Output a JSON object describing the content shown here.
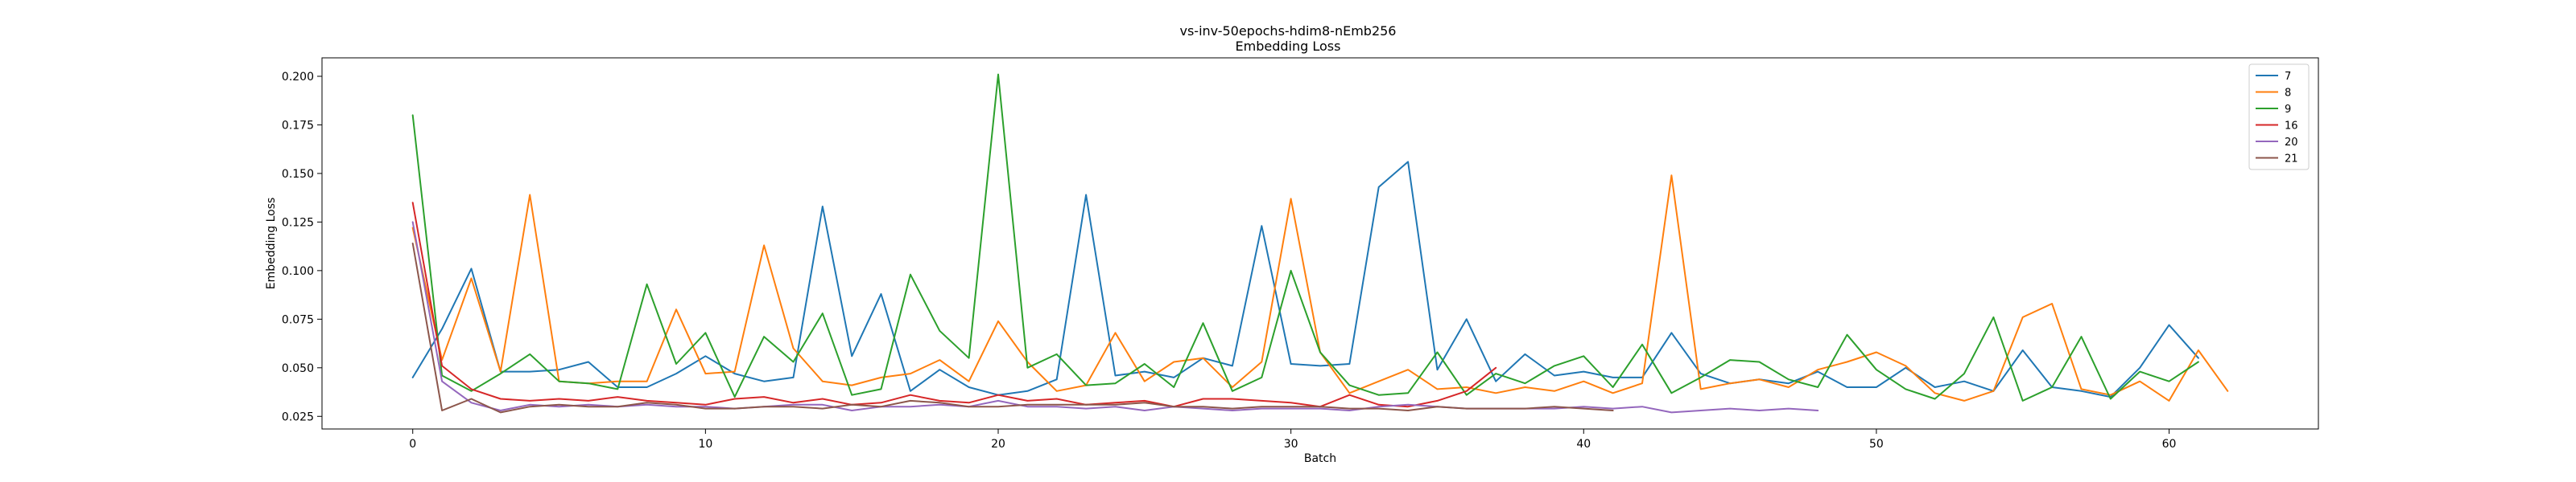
{
  "chart_data": {
    "type": "line",
    "title": "vs-inv-50epochs-hdim8-nEmb256",
    "subtitle": "Embedding Loss",
    "xlabel": "Batch",
    "ylabel": "Embedding Loss",
    "xlim": [
      -3.1,
      65.1
    ],
    "ylim": [
      0.0185,
      0.2095
    ],
    "xticks": [
      0,
      10,
      20,
      30,
      40,
      50,
      60
    ],
    "yticks": [
      0.025,
      0.05,
      0.075,
      0.1,
      0.125,
      0.15,
      0.175,
      0.2
    ],
    "ytick_labels": [
      "0.025",
      "0.050",
      "0.075",
      "0.100",
      "0.125",
      "0.150",
      "0.175",
      "0.200"
    ],
    "grid": false,
    "legend_position": "top-right",
    "series": [
      {
        "name": "7",
        "color": "#1f77b4",
        "values": [
          0.045,
          0.07,
          0.101,
          0.048,
          0.048,
          0.049,
          0.053,
          0.04,
          0.04,
          0.047,
          0.056,
          0.047,
          0.043,
          0.045,
          0.133,
          0.056,
          0.088,
          0.038,
          0.049,
          0.04,
          0.036,
          0.038,
          0.044,
          0.139,
          0.046,
          0.048,
          0.045,
          0.055,
          0.051,
          0.123,
          0.052,
          0.051,
          0.052,
          0.143,
          0.156,
          0.049,
          0.075,
          0.043,
          0.057,
          0.046,
          0.048,
          0.045,
          0.045,
          0.068,
          0.047,
          0.042,
          0.044,
          0.042,
          0.048,
          0.04,
          0.04,
          0.05,
          0.04,
          0.043,
          0.038,
          0.059,
          0.04,
          0.038,
          0.035,
          0.05,
          0.072,
          0.055
        ]
      },
      {
        "name": "8",
        "color": "#ff7f0e",
        "values": [
          0.122,
          0.054,
          0.096,
          0.048,
          0.139,
          0.043,
          0.042,
          0.043,
          0.043,
          0.08,
          0.047,
          0.048,
          0.113,
          0.06,
          0.043,
          0.041,
          0.045,
          0.047,
          0.054,
          0.043,
          0.074,
          0.053,
          0.038,
          0.041,
          0.068,
          0.043,
          0.053,
          0.055,
          0.04,
          0.053,
          0.137,
          0.058,
          0.037,
          0.043,
          0.049,
          0.039,
          0.04,
          0.037,
          0.04,
          0.038,
          0.043,
          0.037,
          0.042,
          0.149,
          0.039,
          0.042,
          0.044,
          0.04,
          0.049,
          0.053,
          0.058,
          0.051,
          0.037,
          0.033,
          0.038,
          0.076,
          0.083,
          0.039,
          0.036,
          0.043,
          0.033,
          0.059,
          0.038
        ]
      },
      {
        "name": "9",
        "color": "#2ca02c",
        "values": [
          0.18,
          0.046,
          0.038,
          0.047,
          0.057,
          0.043,
          0.042,
          0.039,
          0.093,
          0.052,
          0.068,
          0.035,
          0.066,
          0.053,
          0.078,
          0.036,
          0.039,
          0.098,
          0.069,
          0.055,
          0.201,
          0.05,
          0.057,
          0.041,
          0.042,
          0.052,
          0.04,
          0.073,
          0.038,
          0.045,
          0.1,
          0.058,
          0.041,
          0.036,
          0.037,
          0.058,
          0.036,
          0.047,
          0.042,
          0.051,
          0.056,
          0.04,
          0.062,
          0.037,
          0.045,
          0.054,
          0.053,
          0.044,
          0.04,
          0.067,
          0.049,
          0.039,
          0.034,
          0.047,
          0.076,
          0.033,
          0.04,
          0.066,
          0.034,
          0.048,
          0.043,
          0.053
        ]
      },
      {
        "name": "16",
        "color": "#d62728",
        "values": [
          0.135,
          0.051,
          0.039,
          0.034,
          0.033,
          0.034,
          0.033,
          0.035,
          0.033,
          0.032,
          0.031,
          0.034,
          0.035,
          0.032,
          0.034,
          0.031,
          0.032,
          0.036,
          0.033,
          0.032,
          0.036,
          0.033,
          0.034,
          0.031,
          0.032,
          0.033,
          0.03,
          0.034,
          0.034,
          0.033,
          0.032,
          0.03,
          0.036,
          0.031,
          0.03,
          0.033,
          0.038,
          0.05
        ]
      },
      {
        "name": "20",
        "color": "#9467bd",
        "values": [
          0.125,
          0.043,
          0.032,
          0.028,
          0.031,
          0.03,
          0.031,
          0.03,
          0.031,
          0.03,
          0.03,
          0.029,
          0.03,
          0.031,
          0.031,
          0.028,
          0.03,
          0.03,
          0.031,
          0.03,
          0.033,
          0.03,
          0.03,
          0.029,
          0.03,
          0.028,
          0.03,
          0.029,
          0.028,
          0.029,
          0.029,
          0.029,
          0.028,
          0.03,
          0.031,
          0.03,
          0.029,
          0.029,
          0.029,
          0.029,
          0.03,
          0.029,
          0.03,
          0.027,
          0.028,
          0.029,
          0.028,
          0.029,
          0.028
        ]
      },
      {
        "name": "21",
        "color": "#8c564b",
        "values": [
          0.114,
          0.028,
          0.034,
          0.027,
          0.03,
          0.031,
          0.03,
          0.03,
          0.032,
          0.031,
          0.029,
          0.029,
          0.03,
          0.03,
          0.029,
          0.031,
          0.03,
          0.033,
          0.032,
          0.03,
          0.03,
          0.031,
          0.031,
          0.031,
          0.031,
          0.032,
          0.03,
          0.03,
          0.029,
          0.03,
          0.03,
          0.03,
          0.029,
          0.029,
          0.028,
          0.03,
          0.029,
          0.029,
          0.029,
          0.03,
          0.029,
          0.028
        ]
      }
    ]
  }
}
